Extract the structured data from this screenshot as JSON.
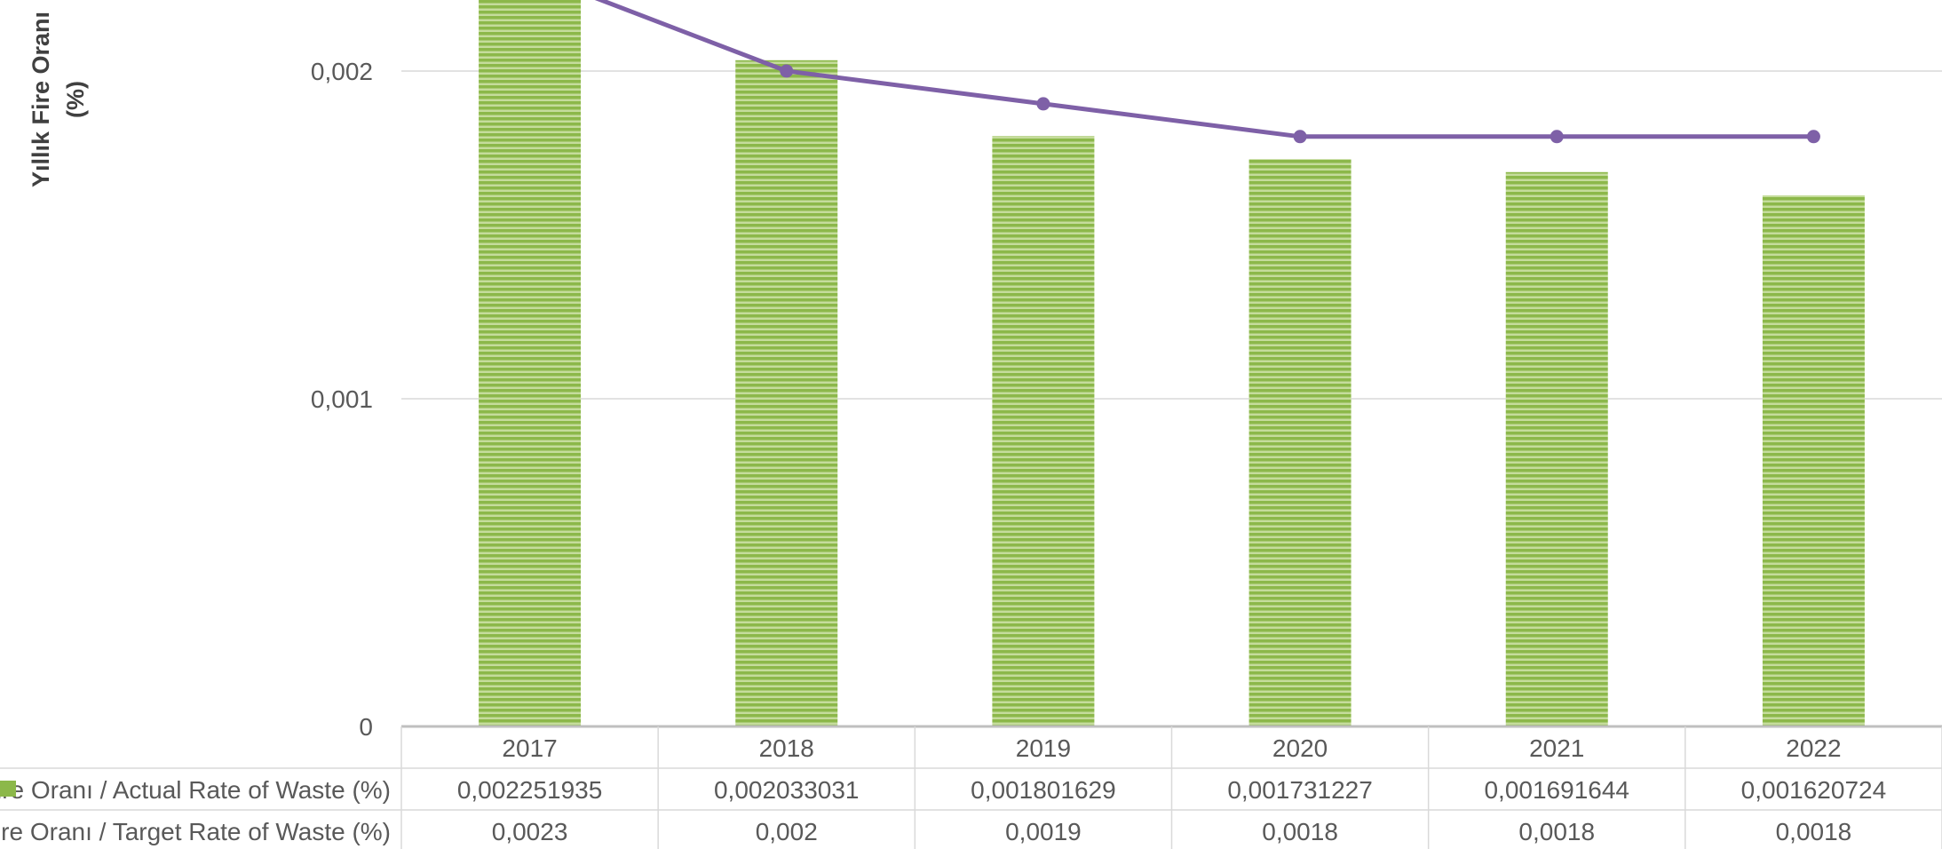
{
  "chart_data": {
    "type": "bar",
    "categories": [
      "2017",
      "2018",
      "2019",
      "2020",
      "2021",
      "2022"
    ],
    "ylabel_lines": [
      "Yıllık Fire Oranı",
      "(%)"
    ],
    "ylim": [
      0,
      0.0022
    ],
    "yticks": [
      0,
      0.001,
      0.002
    ],
    "ytick_labels": [
      "0",
      "0,001",
      "0,002"
    ],
    "grid": true,
    "series": [
      {
        "name": "Fire Oranı / Actual Rate of Waste (%)",
        "type": "bar",
        "values": [
          0.002251935,
          0.002033031,
          0.001801629,
          0.001731227,
          0.001691644,
          0.001620724
        ],
        "labels": [
          "0,002251935",
          "0,002033031",
          "0,001801629",
          "0,001731227",
          "0,001691644",
          "0,001620724"
        ],
        "color": "#8cb84a",
        "stripe_color": "#c5dc9c"
      },
      {
        "name": "Fire Oranı / Target Rate of Waste (%)",
        "type": "line",
        "values": [
          0.0023,
          0.002,
          0.0019,
          0.0018,
          0.0018,
          0.0018
        ],
        "labels": [
          "0,0023",
          "0,002",
          "0,0019",
          "0,0018",
          "0,0018",
          "0,0018"
        ],
        "color": "#7e60a7"
      }
    ],
    "data_table": true
  }
}
